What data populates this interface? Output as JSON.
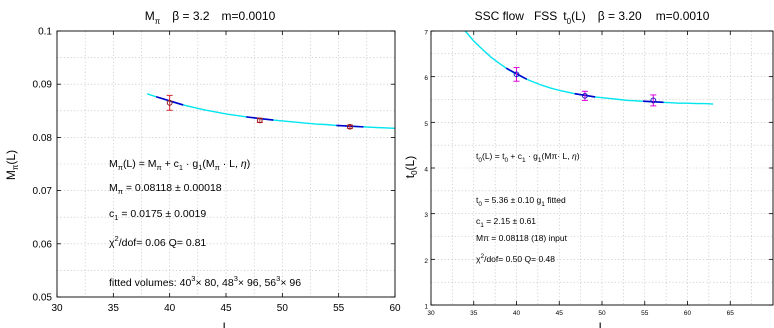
{
  "chart_data": [
    {
      "type": "scatter",
      "title": "M_π   β = 3.2    m=0.0010",
      "xlabel": "L",
      "ylabel": "M_π(L)",
      "xlim": [
        30,
        60
      ],
      "ylim": [
        0.05,
        0.1
      ],
      "xticks": [
        30,
        35,
        40,
        45,
        50,
        55,
        60
      ],
      "yticks": [
        0.05,
        0.06,
        0.07,
        0.08,
        0.09,
        0.1
      ],
      "xtick_labels": [
        "30",
        "35",
        "40",
        "45",
        "50",
        "55",
        "60"
      ],
      "ytick_labels": [
        "0.05",
        "0.06",
        "0.07",
        "0.08",
        "0.09",
        "0.1"
      ],
      "grid": true,
      "series": [
        {
          "kind": "points",
          "marker_color": "#8b1a1a",
          "errorbar_color": "#d62728",
          "points": [
            {
              "x": 40,
              "y": 0.0865,
              "err": 0.0014
            },
            {
              "x": 48,
              "y": 0.0832,
              "err": 0.0004
            },
            {
              "x": 56,
              "y": 0.082,
              "err": 0.0003
            }
          ]
        },
        {
          "kind": "fit",
          "color": "#00e5ee",
          "segment_color": "#0000cd",
          "x": [
            38,
            39,
            40,
            41,
            42,
            43,
            44,
            45,
            46,
            47,
            48,
            49,
            50,
            51,
            52,
            53,
            54,
            55,
            56,
            57,
            58,
            59,
            60
          ],
          "y": [
            0.0882,
            0.0875,
            0.0868,
            0.0862,
            0.0857,
            0.0852,
            0.0848,
            0.0844,
            0.0841,
            0.0838,
            0.0835,
            0.0833,
            0.0831,
            0.0829,
            0.0827,
            0.0825,
            0.0824,
            0.0822,
            0.0821,
            0.082,
            0.0819,
            0.0818,
            0.0817
          ]
        }
      ],
      "annotations": [
        "M_π(L) = M_π + c_1 · g_1(M_π · L, η)",
        "M_π = 0.08118 ± 0.00018",
        "c_1 = 0.0175 ± 0.0019",
        "χ²/dof= 0.06   Q= 0.81",
        "fitted volumes:  40³× 80, 48³× 96, 56³× 96"
      ]
    },
    {
      "type": "scatter",
      "title": "SSC flow   FSS  t_0(L)    β = 3.20      m=0.0010",
      "xlabel": "L",
      "ylabel": "t_0(L)",
      "xlim": [
        30,
        70
      ],
      "ylim": [
        1,
        7
      ],
      "xticks": [
        30,
        35,
        40,
        45,
        50,
        55,
        60,
        65
      ],
      "yticks": [
        1,
        2,
        3,
        4,
        5,
        6,
        7
      ],
      "xtick_labels": [
        "30",
        "35",
        "40",
        "45",
        "50",
        "55",
        "60",
        "65"
      ],
      "ytick_labels": [
        "1",
        "2",
        "3",
        "4",
        "5",
        "6",
        "7"
      ],
      "grid": true,
      "series": [
        {
          "kind": "points",
          "marker_color": "#1f1fbf",
          "errorbar_color": "#e000e0",
          "points": [
            {
              "x": 40,
              "y": 6.05,
              "err": 0.15
            },
            {
              "x": 48,
              "y": 5.58,
              "err": 0.1
            },
            {
              "x": 56,
              "y": 5.48,
              "err": 0.12
            }
          ]
        },
        {
          "kind": "fit",
          "color": "#00e5ee",
          "segment_color": "#0000cd",
          "x": [
            34,
            35,
            36,
            37,
            38,
            39,
            40,
            41,
            42,
            43,
            44,
            45,
            46,
            47,
            48,
            49,
            50,
            51,
            52,
            53,
            54,
            55,
            56,
            57,
            58,
            59,
            60,
            61,
            62,
            63
          ],
          "y": [
            7.0,
            6.78,
            6.6,
            6.43,
            6.29,
            6.16,
            6.05,
            5.96,
            5.88,
            5.81,
            5.75,
            5.7,
            5.66,
            5.62,
            5.59,
            5.56,
            5.54,
            5.52,
            5.5,
            5.48,
            5.47,
            5.46,
            5.45,
            5.44,
            5.43,
            5.42,
            5.42,
            5.41,
            5.41,
            5.4
          ]
        }
      ],
      "annotations": [
        "t_0(L) = t_0 + c_1 · g_1(Mπ· L, η)",
        "t_0 = 5.36 ± 0.10    g_1 fitted",
        "c_1 = 2.15 ± 0.61",
        "Mπ = 0.08118 (18)    input",
        "χ²/dof= 0.50     Q= 0.48"
      ]
    }
  ]
}
